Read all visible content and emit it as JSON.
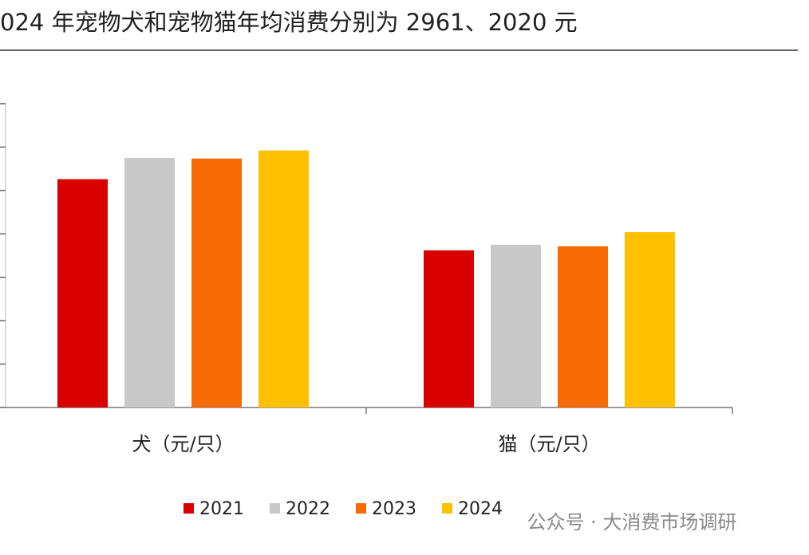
{
  "chart_data": {
    "type": "bar",
    "title": "024 年宠物犬和宠物猫年均消费分别为 2961、2020 元",
    "categories": [
      "犬（元/只）",
      "猫（元/只）"
    ],
    "series": [
      {
        "name": "2021",
        "color": "#d90000",
        "values": [
          2630,
          1810
        ]
      },
      {
        "name": "2022",
        "color": "#c8c8c8",
        "values": [
          2875,
          1875
        ]
      },
      {
        "name": "2023",
        "color": "#f76b05",
        "values": [
          2868,
          1857
        ]
      },
      {
        "name": "2024",
        "color": "#ffc000",
        "values": [
          2961,
          2020
        ]
      }
    ],
    "ylim": [
      0,
      3500
    ],
    "yticks": [
      0,
      500,
      1000,
      1500,
      2000,
      2500,
      3000,
      3500
    ],
    "watermark": "公众号 · 大消费市场调研"
  }
}
